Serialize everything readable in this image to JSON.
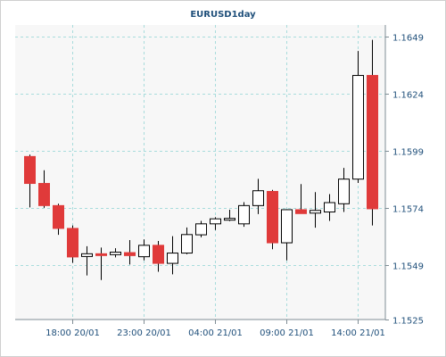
{
  "chart_data": {
    "type": "candlestick",
    "title": "EURUSD1day",
    "xlabel": "",
    "ylabel": "",
    "ylim": [
      1.1525,
      1.1654
    ],
    "y_ticks": [
      "1.1649",
      "1.1624",
      "1.1599",
      "1.1574",
      "1.1549",
      "1.1525"
    ],
    "x_tick_labels": [
      "18:00 20/01",
      "23:00 20/01",
      "04:00 21/01",
      "09:00 21/01",
      "14:00 21/01"
    ],
    "x_tick_candle_index": [
      3,
      8,
      13,
      18,
      23
    ],
    "grid": true,
    "colors": {
      "bullish_fill": "#ffffff",
      "bearish_fill": "#e03a3a",
      "candle_outline": "#000000",
      "grid": "#a8dcdc",
      "axis_text": "#1f4f7a",
      "plot_background": "#f7f7f7"
    },
    "candles": [
      {
        "open": 1.15964,
        "high": 1.15972,
        "low": 1.15741,
        "close": 1.15846
      },
      {
        "open": 1.15846,
        "high": 1.15904,
        "low": 1.15739,
        "close": 1.15749
      },
      {
        "open": 1.15749,
        "high": 1.15757,
        "low": 1.15621,
        "close": 1.15649
      },
      {
        "open": 1.15649,
        "high": 1.15662,
        "low": 1.15498,
        "close": 1.15524
      },
      {
        "open": 1.15526,
        "high": 1.15571,
        "low": 1.15443,
        "close": 1.15538
      },
      {
        "open": 1.15538,
        "high": 1.15565,
        "low": 1.15423,
        "close": 1.15534
      },
      {
        "open": 1.15534,
        "high": 1.15562,
        "low": 1.15522,
        "close": 1.15545
      },
      {
        "open": 1.15543,
        "high": 1.15598,
        "low": 1.15491,
        "close": 1.1553
      },
      {
        "open": 1.15525,
        "high": 1.15601,
        "low": 1.15509,
        "close": 1.15575
      },
      {
        "open": 1.15575,
        "high": 1.15594,
        "low": 1.15459,
        "close": 1.15496
      },
      {
        "open": 1.15496,
        "high": 1.15615,
        "low": 1.15448,
        "close": 1.15541
      },
      {
        "open": 1.15541,
        "high": 1.15653,
        "low": 1.15536,
        "close": 1.15622
      },
      {
        "open": 1.15621,
        "high": 1.15682,
        "low": 1.1561,
        "close": 1.15669
      },
      {
        "open": 1.15669,
        "high": 1.15698,
        "low": 1.15642,
        "close": 1.15691
      },
      {
        "open": 1.15691,
        "high": 1.15731,
        "low": 1.15681,
        "close": 1.15693
      },
      {
        "open": 1.15669,
        "high": 1.15764,
        "low": 1.15656,
        "close": 1.15749
      },
      {
        "open": 1.15749,
        "high": 1.15866,
        "low": 1.15712,
        "close": 1.15814
      },
      {
        "open": 1.15811,
        "high": 1.15818,
        "low": 1.15558,
        "close": 1.15586
      },
      {
        "open": 1.15586,
        "high": 1.15731,
        "low": 1.15509,
        "close": 1.15731
      },
      {
        "open": 1.15731,
        "high": 1.15843,
        "low": 1.15716,
        "close": 1.15714
      },
      {
        "open": 1.15716,
        "high": 1.15808,
        "low": 1.15652,
        "close": 1.15728
      },
      {
        "open": 1.15721,
        "high": 1.15799,
        "low": 1.15682,
        "close": 1.15762
      },
      {
        "open": 1.15757,
        "high": 1.15914,
        "low": 1.15721,
        "close": 1.15865
      },
      {
        "open": 1.15865,
        "high": 1.16426,
        "low": 1.15848,
        "close": 1.16319
      },
      {
        "open": 1.16319,
        "high": 1.16475,
        "low": 1.15662,
        "close": 1.15735
      }
    ]
  }
}
